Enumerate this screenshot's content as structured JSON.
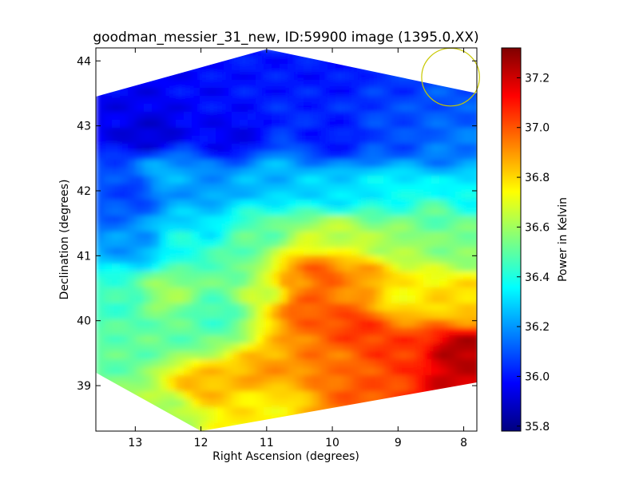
{
  "chart_data": {
    "type": "heatmap",
    "title": "goodman_messier_31_new, ID:59900 image (1395.0,XX)",
    "xlabel": "Right Ascension (degrees)",
    "ylabel": "Declination (degrees)",
    "xlim": [
      13.6,
      7.8
    ],
    "ylim": [
      38.3,
      44.2
    ],
    "xticks": [
      13,
      12,
      11,
      10,
      9,
      8
    ],
    "yticks": [
      39,
      40,
      41,
      42,
      43,
      44
    ],
    "colorbar": {
      "label": "Power in Kelvin",
      "range": [
        35.78,
        37.32
      ],
      "ticks": [
        "35.8",
        "36.0",
        "36.2",
        "36.4",
        "36.6",
        "36.8",
        "37.0",
        "37.2"
      ],
      "colormap": [
        "#00007f",
        "#0000ff",
        "#007fff",
        "#00ffff",
        "#7fff7f",
        "#ffff00",
        "#ff7f00",
        "#ff0000",
        "#7f0000"
      ]
    },
    "beam_marker": {
      "ra": 8.2,
      "dec": 43.75,
      "radius_deg": 0.37,
      "color": "#c8c800"
    },
    "map_outline_radec": [
      [
        13.6,
        43.45
      ],
      [
        11.0,
        44.18
      ],
      [
        7.8,
        43.5
      ],
      [
        7.8,
        39.05
      ],
      [
        12.0,
        38.3
      ],
      [
        13.6,
        39.2
      ]
    ],
    "field_samples": [
      [
        13.0,
        43.2,
        35.95
      ],
      [
        12.0,
        43.6,
        35.98
      ],
      [
        11.0,
        43.9,
        36.0
      ],
      [
        10.0,
        43.8,
        36.0
      ],
      [
        9.0,
        43.7,
        36.05
      ],
      [
        8.2,
        43.4,
        36.1
      ],
      [
        12.8,
        42.9,
        35.9
      ],
      [
        11.5,
        42.8,
        35.95
      ],
      [
        10.0,
        42.8,
        36.0
      ],
      [
        9.0,
        42.8,
        36.08
      ],
      [
        8.2,
        42.6,
        36.15
      ],
      [
        13.0,
        42.0,
        36.05
      ],
      [
        12.0,
        42.0,
        36.2
      ],
      [
        11.0,
        42.2,
        36.25
      ],
      [
        10.0,
        42.0,
        36.3
      ],
      [
        9.0,
        42.0,
        36.35
      ],
      [
        8.0,
        42.0,
        36.35
      ],
      [
        13.0,
        41.2,
        36.2
      ],
      [
        12.2,
        41.2,
        36.4
      ],
      [
        11.2,
        41.3,
        36.5
      ],
      [
        10.0,
        41.3,
        36.65
      ],
      [
        9.0,
        41.2,
        36.6
      ],
      [
        8.0,
        41.2,
        36.55
      ],
      [
        13.2,
        40.3,
        36.45
      ],
      [
        12.5,
        40.4,
        36.6
      ],
      [
        11.0,
        40.5,
        36.65
      ],
      [
        10.4,
        40.2,
        37.0
      ],
      [
        9.6,
        39.9,
        37.05
      ],
      [
        9.0,
        40.4,
        36.75
      ],
      [
        8.0,
        40.3,
        36.8
      ],
      [
        13.2,
        39.5,
        36.5
      ],
      [
        12.0,
        39.0,
        36.85
      ],
      [
        11.0,
        39.1,
        36.9
      ],
      [
        10.0,
        39.3,
        36.95
      ],
      [
        9.0,
        39.5,
        37.05
      ],
      [
        8.0,
        39.5,
        37.25
      ],
      [
        12.5,
        38.6,
        36.6
      ],
      [
        11.0,
        38.8,
        36.75
      ],
      [
        9.5,
        39.0,
        37.0
      ],
      [
        8.0,
        39.1,
        37.2
      ],
      [
        12.6,
        42.2,
        36.25
      ],
      [
        12.0,
        41.5,
        36.3
      ],
      [
        11.5,
        40.8,
        36.5
      ],
      [
        10.6,
        40.6,
        36.9
      ],
      [
        10.2,
        40.7,
        37.0
      ],
      [
        9.5,
        40.6,
        36.9
      ],
      [
        12.3,
        39.8,
        36.5
      ],
      [
        11.8,
        40.1,
        36.45
      ],
      [
        13.4,
        41.8,
        36.1
      ],
      [
        8.5,
        41.6,
        36.5
      ]
    ]
  }
}
